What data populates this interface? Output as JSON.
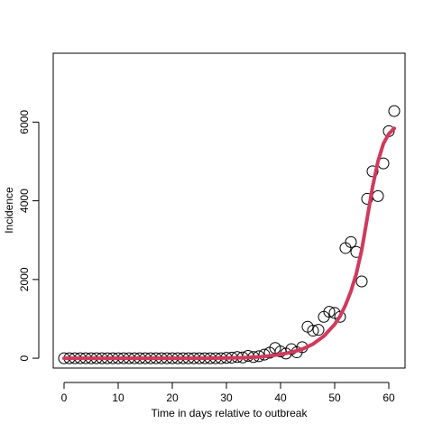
{
  "chart_data": {
    "type": "scatter",
    "title": "",
    "xlabel": "Time in days relative to outbreak",
    "ylabel": "Incidence",
    "xlim": [
      -2,
      63
    ],
    "ylim": [
      -250,
      7750
    ],
    "x_ticks": [
      0,
      10,
      20,
      30,
      40,
      50,
      60
    ],
    "y_ticks": [
      0,
      2000,
      4000,
      6000
    ],
    "grid": false,
    "legend": "none",
    "series": [
      {
        "kind": "points",
        "marker": "open-circle",
        "color": "#000000",
        "x": [
          0,
          1,
          2,
          3,
          4,
          5,
          6,
          7,
          8,
          9,
          10,
          11,
          12,
          13,
          14,
          15,
          16,
          17,
          18,
          19,
          20,
          21,
          22,
          23,
          24,
          25,
          26,
          27,
          28,
          29,
          30,
          31,
          32,
          33,
          34,
          35,
          36,
          37,
          38,
          39,
          40,
          41,
          42,
          43,
          44,
          45,
          46,
          47,
          48,
          49,
          50,
          51,
          52,
          53,
          54,
          55,
          56,
          57,
          58,
          59,
          60,
          61
        ],
        "y": [
          0,
          0,
          0,
          0,
          0,
          0,
          0,
          0,
          0,
          0,
          0,
          0,
          0,
          0,
          0,
          0,
          0,
          0,
          0,
          0,
          0,
          0,
          0,
          0,
          0,
          0,
          0,
          0,
          0,
          0,
          10,
          15,
          30,
          20,
          60,
          30,
          50,
          90,
          140,
          260,
          170,
          120,
          230,
          150,
          280,
          800,
          700,
          720,
          1050,
          1180,
          1150,
          1050,
          2800,
          2950,
          2700,
          1950,
          4050,
          4750,
          4120,
          4950,
          5770,
          6280
        ]
      },
      {
        "kind": "curve",
        "color": "#d03a5c",
        "x": [
          0,
          5,
          10,
          15,
          20,
          25,
          30,
          33,
          36,
          38,
          40,
          42,
          44,
          46,
          48,
          50,
          51,
          52,
          53,
          54,
          55,
          56,
          57,
          58,
          59,
          60,
          61
        ],
        "y": [
          0,
          0,
          0,
          0,
          0,
          0,
          5,
          15,
          35,
          60,
          100,
          150,
          230,
          360,
          560,
          860,
          1070,
          1350,
          1700,
          2150,
          2750,
          3550,
          4350,
          5000,
          5450,
          5700,
          5840
        ]
      }
    ]
  }
}
